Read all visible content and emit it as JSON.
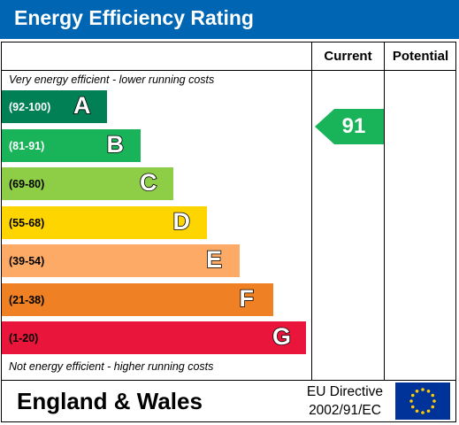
{
  "title": "Energy Efficiency Rating",
  "columns": {
    "current": "Current",
    "potential": "Potential"
  },
  "notes": {
    "top": "Very energy efficient - lower running costs",
    "bottom": "Not energy efficient - higher running costs"
  },
  "footer": {
    "region": "England & Wales",
    "directive_line1": "EU Directive",
    "directive_line2": "2002/91/EC",
    "flag_icon": "eu-flag-icon"
  },
  "chart_data": {
    "type": "bar",
    "title": "Energy Efficiency Rating",
    "categories": [
      "A",
      "B",
      "C",
      "D",
      "E",
      "F",
      "G"
    ],
    "ranges": [
      "(92-100)",
      "(81-91)",
      "(69-80)",
      "(55-68)",
      "(39-54)",
      "(21-38)",
      "(1-20)"
    ],
    "colors": [
      "#008054",
      "#19b459",
      "#8dce46",
      "#ffd500",
      "#fcaa65",
      "#ef8023",
      "#e9153b"
    ],
    "range_text_colors": [
      "#ffffff",
      "#ffffff",
      "#000000",
      "#000000",
      "#000000",
      "#000000",
      "#000000"
    ],
    "current": {
      "value": 91,
      "band": "B",
      "color": "#19b459"
    },
    "potential": null
  }
}
